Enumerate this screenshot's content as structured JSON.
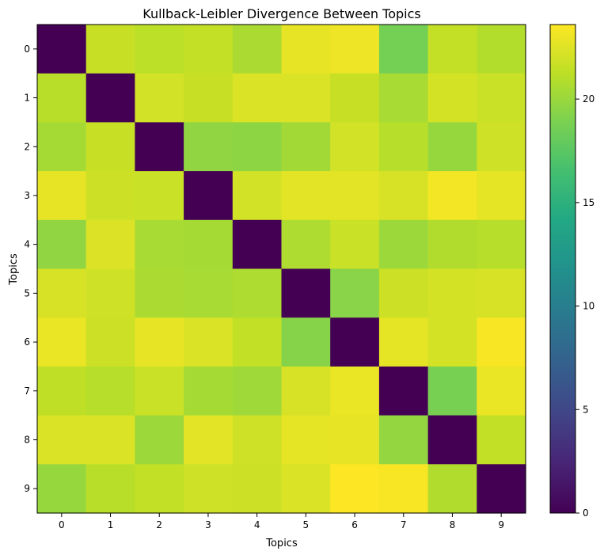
{
  "chart_data": {
    "type": "heatmap",
    "title": "Kullback-Leibler Divergence Between Topics",
    "xlabel": "Topics",
    "ylabel": "Topics",
    "x_ticks": [
      "0",
      "1",
      "2",
      "3",
      "4",
      "5",
      "6",
      "7",
      "8",
      "9"
    ],
    "y_ticks": [
      "0",
      "1",
      "2",
      "3",
      "4",
      "5",
      "6",
      "7",
      "8",
      "9"
    ],
    "colormap": "viridis",
    "value_range": [
      0,
      23.6
    ],
    "colorbar_ticks": [
      0,
      5,
      10,
      15,
      20
    ],
    "colorbar_tick_labels": [
      "0",
      "5",
      "10",
      "15",
      "20"
    ],
    "matrix": [
      [
        0.0,
        21.6,
        21.2,
        21.5,
        20.6,
        22.8,
        23.0,
        18.6,
        21.5,
        20.9
      ],
      [
        21.1,
        0.0,
        22.0,
        21.6,
        22.3,
        22.3,
        21.6,
        20.5,
        22.1,
        21.7
      ],
      [
        20.4,
        21.6,
        0.0,
        19.7,
        19.6,
        20.3,
        22.0,
        21.0,
        19.9,
        21.9
      ],
      [
        22.8,
        21.8,
        21.7,
        0.0,
        22.0,
        22.6,
        22.6,
        22.2,
        23.2,
        22.7
      ],
      [
        19.7,
        22.4,
        20.5,
        20.4,
        0.0,
        20.7,
        21.7,
        20.1,
        20.8,
        21.0
      ],
      [
        22.2,
        21.9,
        20.6,
        20.5,
        20.7,
        0.0,
        19.4,
        21.8,
        22.1,
        22.2
      ],
      [
        22.9,
        21.8,
        22.8,
        22.3,
        21.4,
        19.3,
        0.0,
        22.7,
        22.1,
        23.4
      ],
      [
        21.3,
        21.0,
        21.7,
        20.4,
        20.2,
        22.2,
        22.9,
        0.0,
        18.8,
        22.9
      ],
      [
        22.3,
        22.3,
        20.1,
        22.6,
        21.9,
        22.7,
        22.8,
        19.8,
        0.0,
        21.4
      ],
      [
        19.9,
        21.1,
        21.4,
        21.9,
        21.8,
        22.3,
        23.6,
        23.4,
        20.8,
        0.0
      ]
    ]
  }
}
